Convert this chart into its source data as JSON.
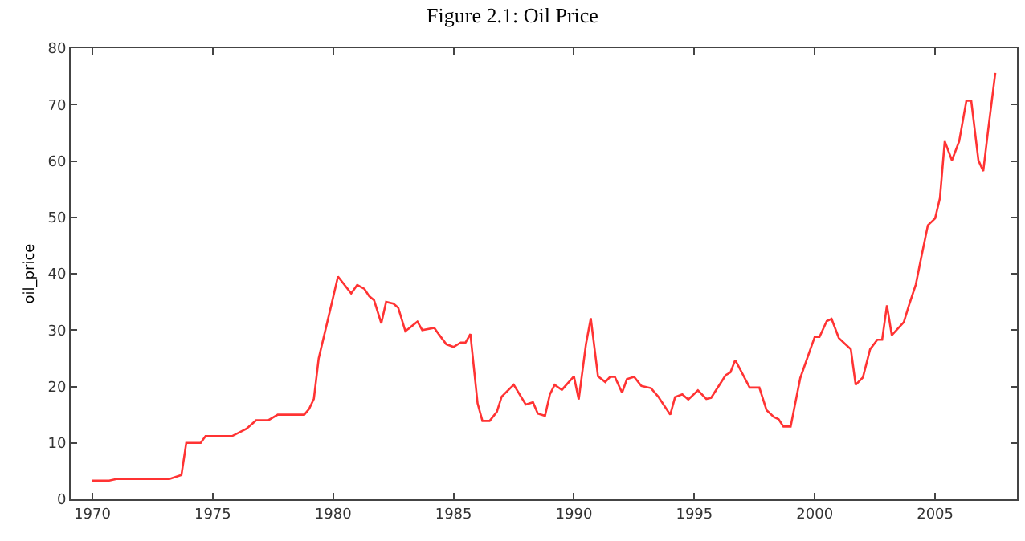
{
  "chart_data": {
    "type": "line",
    "title": "Figure 2.1: Oil Price",
    "ylabel": "oil_price",
    "x": [
      1970,
      1970.7,
      1971,
      1973.2,
      1973.7,
      1973.9,
      1974.5,
      1974.7,
      1975.8,
      1976.4,
      1976.8,
      1977.3,
      1977.7,
      1978.8,
      1979,
      1979.2,
      1979.4,
      1979.9,
      1980.2,
      1980.75,
      1981,
      1981.3,
      1981.5,
      1981.7,
      1982,
      1982.2,
      1982.5,
      1982.7,
      1983,
      1983.5,
      1983.7,
      1984.2,
      1984.4,
      1984.7,
      1985,
      1985.3,
      1985.5,
      1985.7,
      1986,
      1986.2,
      1986.5,
      1986.8,
      1987,
      1987.5,
      1988,
      1988.3,
      1988.5,
      1988.8,
      1989,
      1989.2,
      1989.5,
      1990,
      1990.2,
      1990.5,
      1990.7,
      1991,
      1991.3,
      1991.5,
      1991.7,
      1992,
      1992.2,
      1992.5,
      1992.8,
      1993.2,
      1993.5,
      1994,
      1994.2,
      1994.5,
      1994.75,
      1995.15,
      1995.5,
      1995.7,
      1996.3,
      1996.5,
      1996.7,
      1997.3,
      1997.7,
      1998,
      1998.3,
      1998.5,
      1998.7,
      1999,
      1999.4,
      2000,
      2000.2,
      2000.5,
      2000.7,
      2001,
      2001.2,
      2001.5,
      2001.7,
      2002,
      2002.3,
      2002.6,
      2002.8,
      2003,
      2003.2,
      2003.7,
      2003.9,
      2004.2,
      2004.4,
      2004.7,
      2005,
      2005.2,
      2005.4,
      2005.7,
      2006,
      2006.3,
      2006.5,
      2006.8,
      2007,
      2007.2,
      2007.5
    ],
    "series": [
      {
        "color": "#ff3333",
        "values": [
          3.3,
          3.3,
          3.6,
          3.6,
          4.3,
          10,
          10,
          11.2,
          11.2,
          12.5,
          14,
          14,
          15,
          15,
          16,
          17.8,
          25,
          34,
          39.5,
          36.5,
          38,
          37.3,
          36,
          35.3,
          31.2,
          35,
          34.7,
          34,
          29.8,
          31.5,
          30,
          30.4,
          29.2,
          27.5,
          27,
          27.8,
          27.8,
          29.3,
          17,
          13.9,
          13.9,
          15.5,
          18.2,
          20.3,
          16.8,
          17.2,
          15.2,
          14.8,
          18.6,
          20.3,
          19.4,
          21.8,
          17.7,
          27.5,
          32.1,
          21.8,
          20.8,
          21.7,
          21.7,
          18.9,
          21.3,
          21.7,
          20.1,
          19.7,
          18.2,
          15,
          18.1,
          18.6,
          17.7,
          19.3,
          17.8,
          18,
          22,
          22.5,
          24.7,
          19.8,
          19.8,
          15.8,
          14.6,
          14.2,
          12.9,
          12.9,
          21.5,
          28.8,
          28.8,
          31.6,
          32,
          28.6,
          27.8,
          26.6,
          20.3,
          21.6,
          26.6,
          28.3,
          28.3,
          34.4,
          29.1,
          31.4,
          34.2,
          38.1,
          42.4,
          48.6,
          49.8,
          53.4,
          63.5,
          60.1,
          63.5,
          70.7,
          70.7,
          60.1,
          58.2,
          65.4,
          75.6
        ]
      }
    ],
    "xlim": [
      1969.1,
      2008.4
    ],
    "xticks": [
      1970,
      1975,
      1980,
      1985,
      1990,
      1995,
      2000,
      2005
    ],
    "ylim": [
      0,
      80
    ],
    "yticks": [
      0,
      10,
      20,
      30,
      40,
      50,
      60,
      70,
      80
    ],
    "marker": "none",
    "line_style": "solid"
  }
}
